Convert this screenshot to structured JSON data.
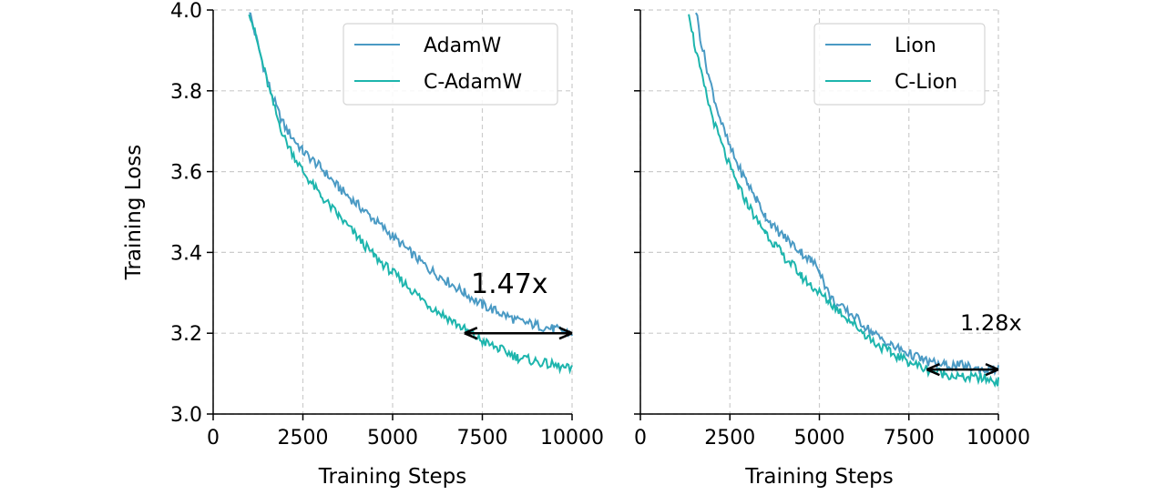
{
  "chart_data": [
    {
      "type": "line",
      "title": "",
      "xlabel": "Training Steps",
      "ylabel": "Training Loss",
      "xlim": [
        0,
        10000
      ],
      "ylim": [
        3.0,
        4.0
      ],
      "xticks": [
        0,
        2500,
        5000,
        7500,
        10000
      ],
      "xtick_labels": [
        "0",
        "2500",
        "5000",
        "7500",
        "10000"
      ],
      "yticks": [
        3.0,
        3.2,
        3.4,
        3.6,
        3.8,
        4.0
      ],
      "ytick_labels": [
        "3.0",
        "3.2",
        "3.4",
        "3.6",
        "3.8",
        "4.0"
      ],
      "grid": true,
      "legend": "top-right",
      "series": [
        {
          "name": "AdamW",
          "color": "#4a9ac4",
          "x": [
            1000,
            1200,
            1400,
            1600,
            1800,
            2000,
            2500,
            3000,
            3500,
            4000,
            4500,
            5000,
            5500,
            6000,
            6500,
            7000,
            7500,
            8000,
            8500,
            9000,
            9500,
            10000
          ],
          "y": [
            4.0,
            3.93,
            3.86,
            3.8,
            3.75,
            3.71,
            3.65,
            3.61,
            3.56,
            3.52,
            3.48,
            3.44,
            3.4,
            3.36,
            3.33,
            3.3,
            3.27,
            3.25,
            3.23,
            3.22,
            3.21,
            3.2
          ]
        },
        {
          "name": "C-AdamW",
          "color": "#1db5ad",
          "x": [
            1000,
            1200,
            1400,
            1600,
            1800,
            2000,
            2500,
            3000,
            3500,
            4000,
            4500,
            5000,
            5500,
            6000,
            6500,
            7000,
            7500,
            8000,
            8500,
            9000,
            9500,
            10000
          ],
          "y": [
            4.0,
            3.93,
            3.86,
            3.79,
            3.73,
            3.68,
            3.6,
            3.54,
            3.49,
            3.44,
            3.39,
            3.35,
            3.31,
            3.27,
            3.24,
            3.21,
            3.18,
            3.16,
            3.14,
            3.13,
            3.12,
            3.11
          ]
        }
      ],
      "annotations": [
        {
          "text": "1.47x",
          "arrow_from": [
            7000,
            3.2
          ],
          "arrow_to": [
            10000,
            3.2
          ]
        }
      ]
    },
    {
      "type": "line",
      "title": "",
      "xlabel": "Training Steps",
      "ylabel": "",
      "xlim": [
        0,
        10000
      ],
      "ylim": [
        3.0,
        4.0
      ],
      "xticks": [
        0,
        2500,
        5000,
        7500,
        10000
      ],
      "xtick_labels": [
        "0",
        "2500",
        "5000",
        "7500",
        "10000"
      ],
      "yticks": [
        3.0,
        3.2,
        3.4,
        3.6,
        3.8,
        4.0
      ],
      "grid": true,
      "legend": "top-right",
      "series": [
        {
          "name": "Lion",
          "color": "#4a9ac4",
          "x": [
            1550,
            1700,
            1900,
            2100,
            2300,
            2500,
            2750,
            3000,
            3250,
            3500,
            3750,
            4000,
            4250,
            4500,
            4750,
            5000,
            5150,
            5300,
            5500,
            6000,
            6500,
            7000,
            7500,
            8000,
            8500,
            9000,
            9500,
            10000
          ],
          "y": [
            4.0,
            3.92,
            3.84,
            3.77,
            3.71,
            3.66,
            3.61,
            3.57,
            3.53,
            3.49,
            3.46,
            3.44,
            3.42,
            3.4,
            3.38,
            3.36,
            3.32,
            3.29,
            3.27,
            3.24,
            3.2,
            3.17,
            3.15,
            3.13,
            3.12,
            3.12,
            3.11,
            3.11
          ]
        },
        {
          "name": "C-Lion",
          "color": "#1db5ad",
          "x": [
            1350,
            1500,
            1700,
            1900,
            2100,
            2300,
            2500,
            2750,
            3000,
            3250,
            3500,
            3750,
            4000,
            4250,
            4500,
            4750,
            5000,
            5250,
            5500,
            6000,
            6500,
            7000,
            7500,
            8000,
            8500,
            9000,
            9500,
            10000
          ],
          "y": [
            4.0,
            3.92,
            3.84,
            3.77,
            3.71,
            3.66,
            3.61,
            3.56,
            3.52,
            3.48,
            3.45,
            3.42,
            3.39,
            3.37,
            3.34,
            3.32,
            3.3,
            3.28,
            3.26,
            3.22,
            3.18,
            3.15,
            3.13,
            3.11,
            3.1,
            3.09,
            3.09,
            3.08
          ]
        }
      ],
      "annotations": [
        {
          "text": "1.28x",
          "arrow_from": [
            8000,
            3.11
          ],
          "arrow_to": [
            10000,
            3.11
          ]
        }
      ]
    }
  ]
}
